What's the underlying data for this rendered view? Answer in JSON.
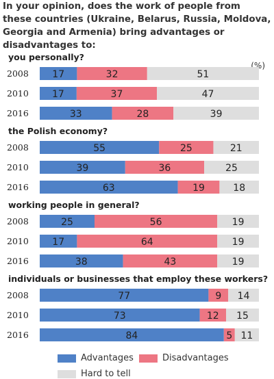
{
  "title": "In your opinion, does the work of people from these countries (Ukraine, Belarus, Russia, Moldova, Georgia and Armenia) bring advantages or disadvantages to:",
  "unit_label": "(%)",
  "colors": {
    "advantages": "#4f81c7",
    "disadvantages": "#ed7683",
    "hard_to_tell": "#dedede"
  },
  "legend": {
    "advantages": "Advantages",
    "disadvantages": "Disadvantages",
    "hard_to_tell": "Hard to tell"
  },
  "chart_data": {
    "type": "bar",
    "orientation": "horizontal",
    "stacked": true,
    "xlim": [
      0,
      100
    ],
    "series_names": [
      "Advantages",
      "Disadvantages",
      "Hard to tell"
    ],
    "groups": [
      {
        "label": "you personally?",
        "rows": [
          {
            "year": "2008",
            "values": [
              17,
              32,
              51
            ]
          },
          {
            "year": "2010",
            "values": [
              17,
              37,
              47
            ]
          },
          {
            "year": "2016",
            "values": [
              33,
              28,
              39
            ]
          }
        ]
      },
      {
        "label": "the Polish economy?",
        "rows": [
          {
            "year": "2008",
            "values": [
              55,
              25,
              21
            ]
          },
          {
            "year": "2010",
            "values": [
              39,
              36,
              25
            ]
          },
          {
            "year": "2016",
            "values": [
              63,
              19,
              18
            ]
          }
        ]
      },
      {
        "label": "working people in general?",
        "rows": [
          {
            "year": "2008",
            "values": [
              25,
              56,
              19
            ]
          },
          {
            "year": "2010",
            "values": [
              17,
              64,
              19
            ]
          },
          {
            "year": "2016",
            "values": [
              38,
              43,
              19
            ]
          }
        ]
      },
      {
        "label": "individuals or businesses that employ these workers?",
        "rows": [
          {
            "year": "2008",
            "values": [
              77,
              9,
              14
            ]
          },
          {
            "year": "2010",
            "values": [
              73,
              12,
              15
            ]
          },
          {
            "year": "2016",
            "values": [
              84,
              5,
              11
            ]
          }
        ]
      }
    ]
  }
}
